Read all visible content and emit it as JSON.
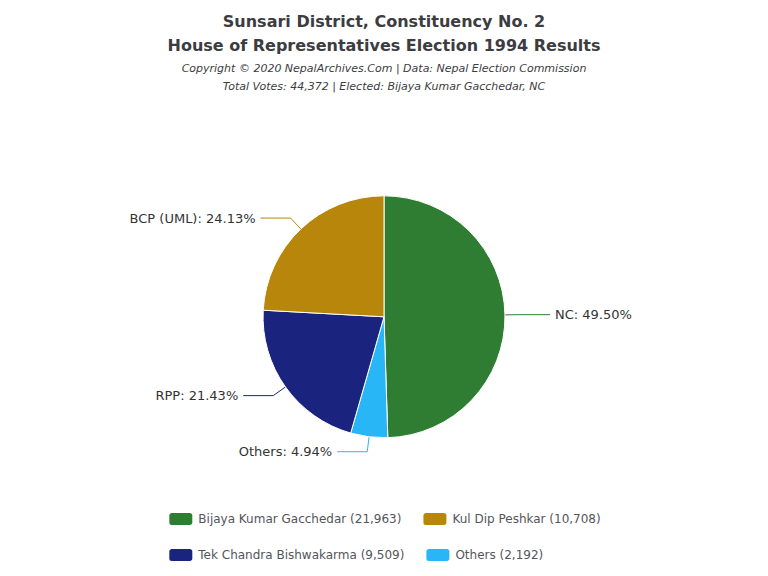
{
  "chart_data": {
    "type": "pie",
    "title": [
      "Sunsari District, Constituency No. 2",
      "House of Representatives Election 1994 Results"
    ],
    "subtitle": [
      "Copyright © 2020 NepalArchives.Com | Data: Nepal Election Commission",
      "Total Votes: 44,372 | Elected: Bijaya Kumar Gacchedar, NC"
    ],
    "values": [
      49.5,
      4.94,
      21.43,
      24.13
    ],
    "value_labels": [
      "NC: 49.50%",
      "Others: 4.94%",
      "RPP: 21.43%",
      "BCP (UML): 24.13%"
    ],
    "colors": [
      "#2e7d32",
      "#29b6f6",
      "#1a237e",
      "#b8860b"
    ],
    "data_labels": true,
    "legend": "bottom",
    "legend_entries": [
      {
        "label": "Bijaya Kumar Gacchedar (21,963)",
        "color": "#2e7d32"
      },
      {
        "label": "Kul Dip Peshkar (10,708)",
        "color": "#b8860b"
      },
      {
        "label": "Tek Chandra Bishwakarma (9,509)",
        "color": "#1a237e"
      },
      {
        "label": "Others (2,192)",
        "color": "#29b6f6"
      }
    ]
  }
}
